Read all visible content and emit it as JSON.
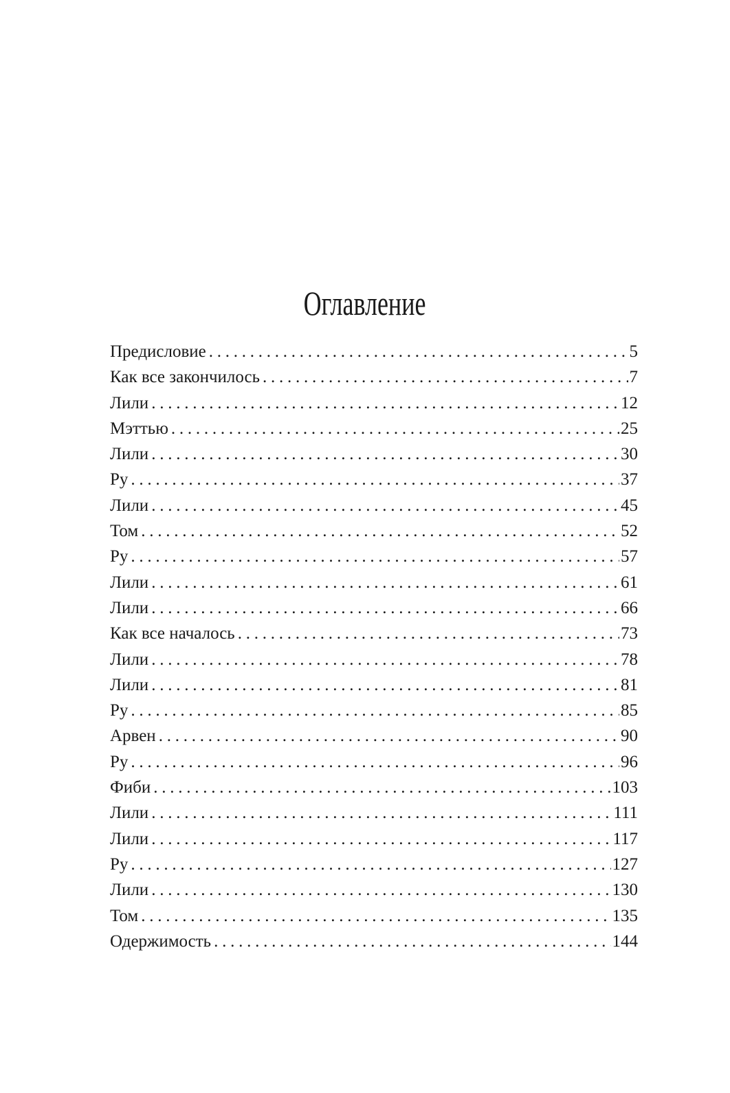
{
  "title": "Оглавление",
  "entries": [
    {
      "label": "Предисловие",
      "page": "5"
    },
    {
      "label": "Как все закончилось",
      "page": "7"
    },
    {
      "label": "Лили",
      "page": "12"
    },
    {
      "label": "Мэттью",
      "page": "25"
    },
    {
      "label": "Лили",
      "page": "30"
    },
    {
      "label": "Ру",
      "page": "37"
    },
    {
      "label": "Лили",
      "page": "45"
    },
    {
      "label": "Том",
      "page": "52"
    },
    {
      "label": "Ру",
      "page": "57"
    },
    {
      "label": "Лили",
      "page": "61"
    },
    {
      "label": "Лили",
      "page": "66"
    },
    {
      "label": "Как все началось",
      "page": "73"
    },
    {
      "label": "Лили",
      "page": "78"
    },
    {
      "label": "Лили",
      "page": "81"
    },
    {
      "label": "Ру",
      "page": "85"
    },
    {
      "label": "Арвен",
      "page": "90"
    },
    {
      "label": "Ру",
      "page": "96"
    },
    {
      "label": "Фиби",
      "page": "103"
    },
    {
      "label": "Лили",
      "page": "111"
    },
    {
      "label": "Лили",
      "page": "117"
    },
    {
      "label": "Ру",
      "page": "127"
    },
    {
      "label": "Лили",
      "page": "130"
    },
    {
      "label": "Том",
      "page": "135"
    },
    {
      "label": "Одержимость",
      "page": "144"
    }
  ]
}
